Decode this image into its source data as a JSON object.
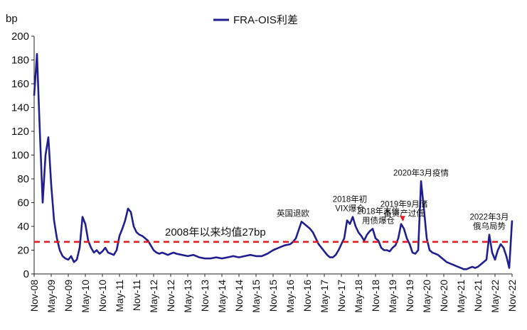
{
  "chart_data": {
    "type": "line",
    "ylabel": "bp",
    "ylim": [
      0,
      200
    ],
    "yticks": [
      0,
      20,
      40,
      60,
      80,
      100,
      120,
      140,
      160,
      180,
      200
    ],
    "xlim": [
      "2008-11",
      "2022-11"
    ],
    "xticks": [
      "Nov-08",
      "May-09",
      "Nov-09",
      "May-10",
      "Nov-10",
      "May-11",
      "Nov-11",
      "May-12",
      "Nov-12",
      "May-13",
      "Nov-13",
      "May-14",
      "Nov-14",
      "May-15",
      "Nov-15",
      "May-16",
      "Nov-16",
      "May-17",
      "Nov-17",
      "May-18",
      "Nov-18",
      "May-19",
      "Nov-19",
      "May-20",
      "Nov-20",
      "May-21",
      "Nov-21",
      "May-22",
      "Nov-22"
    ],
    "legend": {
      "position": "top-center"
    },
    "colors": {
      "series": "#1f1f8f",
      "average": "#e31e24",
      "annotation_arrow": "#e31e24"
    },
    "series": [
      {
        "name": "FRA-OIS利差",
        "x": [
          "2008-11",
          "2008-12",
          "2009-01",
          "2009-02",
          "2009-03",
          "2009-04",
          "2009-05",
          "2009-06",
          "2009-07",
          "2009-08",
          "2009-09",
          "2009-10",
          "2009-11",
          "2009-12",
          "2010-01",
          "2010-02",
          "2010-03",
          "2010-04",
          "2010-05",
          "2010-06",
          "2010-07",
          "2010-08",
          "2010-09",
          "2010-10",
          "2010-11",
          "2010-12",
          "2011-01",
          "2011-02",
          "2011-03",
          "2011-04",
          "2011-05",
          "2011-06",
          "2011-07",
          "2011-08",
          "2011-09",
          "2011-10",
          "2011-11",
          "2011-12",
          "2012-01",
          "2012-02",
          "2012-03",
          "2012-04",
          "2012-05",
          "2012-06",
          "2012-07",
          "2012-08",
          "2012-09",
          "2012-10",
          "2012-11",
          "2012-12",
          "2013-01",
          "2013-03",
          "2013-05",
          "2013-07",
          "2013-09",
          "2013-11",
          "2014-01",
          "2014-03",
          "2014-05",
          "2014-07",
          "2014-09",
          "2014-11",
          "2015-01",
          "2015-03",
          "2015-05",
          "2015-07",
          "2015-09",
          "2015-11",
          "2016-01",
          "2016-03",
          "2016-05",
          "2016-06",
          "2016-07",
          "2016-08",
          "2016-09",
          "2016-10",
          "2016-11",
          "2016-12",
          "2017-01",
          "2017-02",
          "2017-03",
          "2017-04",
          "2017-05",
          "2017-06",
          "2017-07",
          "2017-08",
          "2017-09",
          "2017-10",
          "2017-11",
          "2017-12",
          "2018-01",
          "2018-02",
          "2018-03",
          "2018-04",
          "2018-05",
          "2018-06",
          "2018-07",
          "2018-08",
          "2018-09",
          "2018-10",
          "2018-11",
          "2018-12",
          "2019-01",
          "2019-02",
          "2019-03",
          "2019-04",
          "2019-05",
          "2019-06",
          "2019-07",
          "2019-08",
          "2019-09",
          "2019-10",
          "2019-11",
          "2019-12",
          "2020-01",
          "2020-02",
          "2020-03",
          "2020-04",
          "2020-05",
          "2020-06",
          "2020-07",
          "2020-08",
          "2020-09",
          "2020-10",
          "2020-11",
          "2020-12",
          "2021-01",
          "2021-02",
          "2021-03",
          "2021-04",
          "2021-05",
          "2021-06",
          "2021-07",
          "2021-08",
          "2021-09",
          "2021-10",
          "2021-11",
          "2021-12",
          "2022-01",
          "2022-02",
          "2022-03",
          "2022-04",
          "2022-05",
          "2022-06",
          "2022-07",
          "2022-08",
          "2022-09",
          "2022-10",
          "2022-11"
        ],
        "values": [
          150,
          185,
          120,
          60,
          100,
          115,
          75,
          45,
          30,
          20,
          15,
          13,
          12,
          15,
          10,
          12,
          22,
          48,
          42,
          28,
          22,
          18,
          20,
          17,
          19,
          22,
          18,
          17,
          16,
          20,
          32,
          38,
          45,
          55,
          52,
          40,
          35,
          33,
          32,
          30,
          28,
          24,
          20,
          18,
          17,
          18,
          17,
          16,
          17,
          18,
          17,
          16,
          15,
          16,
          14,
          13,
          13,
          14,
          13,
          14,
          15,
          14,
          15,
          16,
          15,
          15,
          17,
          20,
          22,
          24,
          25,
          27,
          30,
          37,
          44,
          42,
          40,
          38,
          35,
          30,
          25,
          22,
          19,
          16,
          14,
          14,
          16,
          20,
          25,
          30,
          45,
          42,
          48,
          40,
          35,
          32,
          28,
          33,
          36,
          38,
          30,
          28,
          22,
          20,
          20,
          19,
          22,
          24,
          30,
          42,
          38,
          30,
          25,
          18,
          17,
          20,
          78,
          55,
          30,
          20,
          18,
          17,
          16,
          14,
          12,
          10,
          9,
          8,
          7,
          6,
          5,
          4,
          4,
          5,
          6,
          5,
          6,
          8,
          10,
          12,
          33,
          18,
          12,
          20,
          25,
          22,
          15,
          5,
          45
        ]
      },
      {
        "name": "2008年以来均值27bp",
        "x": [
          "2008-11",
          "2022-11"
        ],
        "values": [
          27,
          27
        ]
      }
    ],
    "annotations": [
      {
        "text": [
          "英国退欧"
        ],
        "x": "2016-06",
        "y": 44
      },
      {
        "text": [
          "2018年初",
          "VIX爆仓"
        ],
        "x": "2018-02",
        "y": 48
      },
      {
        "text": [
          "2018年末信",
          "用债爆仓"
        ],
        "x": "2018-12",
        "y": 38
      },
      {
        "text": [
          "2019年9月储",
          "备资产过低"
        ],
        "x": "2019-09",
        "y": 44,
        "arrow": true
      },
      {
        "text": [
          "2020年3月疫情"
        ],
        "x": "2020-03",
        "y": 78
      },
      {
        "text": [
          "2022年3月",
          "俄乌局势"
        ],
        "x": "2022-03",
        "y": 33
      }
    ],
    "average_label": "2008年以来均值27bp"
  }
}
